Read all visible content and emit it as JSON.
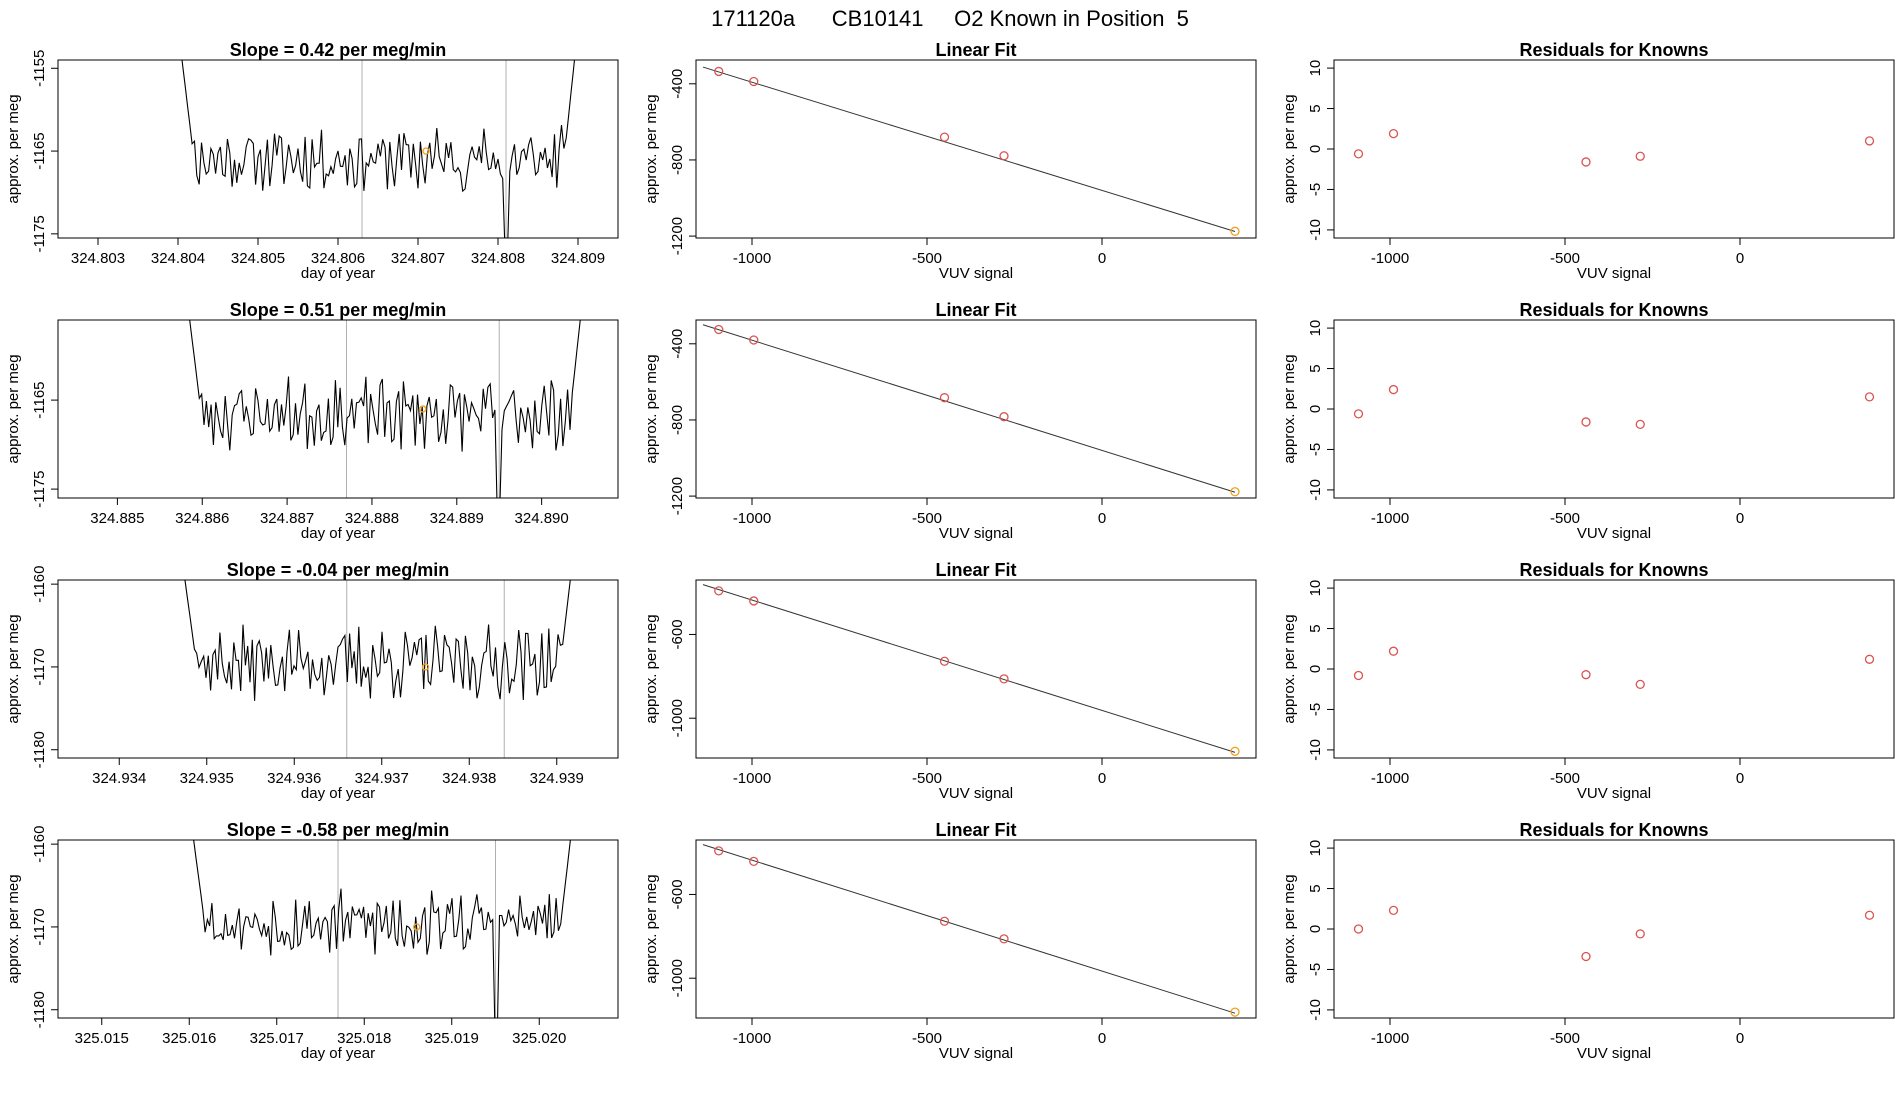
{
  "page_title": "171120a      CB10141     O2 Known in Position  5",
  "colors": {
    "trace": "#000000",
    "fit_point": "#d9534f",
    "highlight": "#f0a020",
    "vline": "#b0b0b0",
    "fit_line": "#333333"
  },
  "chart_data": [
    {
      "type": "line",
      "title": "Slope =  0.42  per meg/min",
      "xlabel": "day of year",
      "ylabel": "approx. per meg",
      "xlim": [
        324.8025,
        324.8095
      ],
      "ylim": [
        -1175.5,
        -1154
      ],
      "xticks": [
        324.803,
        324.804,
        324.805,
        324.806,
        324.807,
        324.808,
        324.809
      ],
      "xtick_labels": [
        "324.803",
        "324.804",
        "324.805",
        "324.806",
        "324.807",
        "324.808",
        "324.809"
      ],
      "yticks": [
        -1155,
        -1165,
        -1175
      ],
      "ytick_labels": [
        "-1155",
        "-1165",
        "-1175"
      ],
      "trace": {
        "start": 324.804,
        "end": 324.809,
        "base": -1166.0,
        "amp": 2.0,
        "seed": 11
      },
      "vlines": [
        324.8063,
        324.8081
      ],
      "dip_at": 324.8081,
      "highlight": [
        324.8071,
        -1165.0
      ]
    },
    {
      "type": "scatter",
      "title": "Linear Fit",
      "xlabel": "VUV signal",
      "ylabel": "approx. per meg",
      "xlim": [
        -1160,
        440
      ],
      "ylim": [
        -1210,
        -275
      ],
      "xticks": [
        -1000,
        -500,
        0
      ],
      "xtick_labels": [
        "-1000",
        "-500",
        "0"
      ],
      "yticks": [
        -400,
        -800,
        -1200
      ],
      "ytick_labels": [
        "-400",
        "-800",
        "-1200"
      ],
      "points": [
        [
          -1095,
          -335
        ],
        [
          -995,
          -388
        ],
        [
          -450,
          -680
        ],
        [
          -280,
          -778
        ],
        [
          380,
          -1175
        ]
      ],
      "highlight_index": 4,
      "fit_line": [
        [
          -1140,
          -312
        ],
        [
          380,
          -1176
        ]
      ]
    },
    {
      "type": "scatter",
      "title": "Residuals for Knowns",
      "xlabel": "VUV signal",
      "ylabel": "approx. per meg",
      "xlim": [
        -1160,
        440
      ],
      "ylim": [
        -11,
        11
      ],
      "xticks": [
        -1000,
        -500,
        0
      ],
      "xtick_labels": [
        "-1000",
        "-500",
        "0"
      ],
      "yticks": [
        10,
        5,
        0,
        -5,
        -10
      ],
      "ytick_labels": [
        "10",
        "5",
        "0",
        "-5",
        "-10"
      ],
      "points": [
        [
          -1090,
          -0.6
        ],
        [
          -990,
          1.9
        ],
        [
          -440,
          -1.6
        ],
        [
          -285,
          -0.9
        ],
        [
          370,
          1.0
        ]
      ]
    },
    {
      "type": "line",
      "title": "Slope =  0.51  per meg/min",
      "xlabel": "day of year",
      "ylabel": "approx. per meg",
      "xlim": [
        324.8843,
        324.8909
      ],
      "ylim": [
        -1176,
        -1156
      ],
      "xticks": [
        324.885,
        324.886,
        324.887,
        324.888,
        324.889,
        324.89
      ],
      "xtick_labels": [
        "324.885",
        "324.886",
        "324.887",
        "324.888",
        "324.889",
        "324.890"
      ],
      "yticks": [
        -1165,
        -1175
      ],
      "ytick_labels": [
        "-1165",
        "-1175"
      ],
      "trace": {
        "start": 324.8858,
        "end": 324.8905,
        "base": -1166.5,
        "amp": 2.0,
        "seed": 23
      },
      "vlines": [
        324.8877,
        324.8895
      ],
      "dip_at": 324.8895,
      "highlight": [
        324.8886,
        -1166.0
      ]
    },
    {
      "type": "scatter",
      "title": "Linear Fit",
      "xlabel": "VUV signal",
      "ylabel": "approx. per meg",
      "xlim": [
        -1160,
        440
      ],
      "ylim": [
        -1210,
        -275
      ],
      "xticks": [
        -1000,
        -500,
        0
      ],
      "xtick_labels": [
        "-1000",
        "-500",
        "0"
      ],
      "yticks": [
        -400,
        -800,
        -1200
      ],
      "ytick_labels": [
        "-400",
        "-800",
        "-1200"
      ],
      "points": [
        [
          -1095,
          -325
        ],
        [
          -995,
          -380
        ],
        [
          -450,
          -683
        ],
        [
          -280,
          -783
        ],
        [
          380,
          -1177
        ]
      ],
      "highlight_index": 4,
      "fit_line": [
        [
          -1140,
          -300
        ],
        [
          380,
          -1180
        ]
      ]
    },
    {
      "type": "scatter",
      "title": "Residuals for Knowns",
      "xlabel": "VUV signal",
      "ylabel": "approx. per meg",
      "xlim": [
        -1160,
        440
      ],
      "ylim": [
        -11,
        11
      ],
      "xticks": [
        -1000,
        -500,
        0
      ],
      "xtick_labels": [
        "-1000",
        "-500",
        "0"
      ],
      "yticks": [
        10,
        5,
        0,
        -5,
        -10
      ],
      "ytick_labels": [
        "10",
        "5",
        "0",
        "-5",
        "-10"
      ],
      "points": [
        [
          -1090,
          -0.6
        ],
        [
          -990,
          2.4
        ],
        [
          -440,
          -1.6
        ],
        [
          -285,
          -1.9
        ],
        [
          370,
          1.5
        ]
      ]
    },
    {
      "type": "line",
      "title": "Slope =  -0.04  per meg/min",
      "xlabel": "day of year",
      "ylabel": "approx. per meg",
      "xlim": [
        324.9333,
        324.9397
      ],
      "ylim": [
        -1181,
        -1159.5
      ],
      "xticks": [
        324.934,
        324.935,
        324.936,
        324.937,
        324.938,
        324.939
      ],
      "xtick_labels": [
        "324.934",
        "324.935",
        "324.936",
        "324.937",
        "324.938",
        "324.939"
      ],
      "yticks": [
        -1160,
        -1170,
        -1180
      ],
      "ytick_labels": [
        "-1160",
        "-1170",
        "-1180"
      ],
      "trace": {
        "start": 324.9347,
        "end": 324.9392,
        "base": -1169.5,
        "amp": 2.2,
        "seed": 37
      },
      "vlines": [
        324.9366,
        324.9384
      ],
      "dip_at": null,
      "highlight": [
        324.9375,
        -1170.0
      ]
    },
    {
      "type": "scatter",
      "title": "Linear Fit",
      "xlabel": "VUV signal",
      "ylabel": "approx. per meg",
      "xlim": [
        -1160,
        440
      ],
      "ylim": [
        -1190,
        -340
      ],
      "xticks": [
        -1000,
        -500,
        0
      ],
      "xtick_labels": [
        "-1000",
        "-500",
        "0"
      ],
      "yticks": [
        -600,
        -1000
      ],
      "ytick_labels": [
        "-600",
        "-1000"
      ],
      "points": [
        [
          -1095,
          -392
        ],
        [
          -995,
          -440
        ],
        [
          -450,
          -728
        ],
        [
          -280,
          -812
        ],
        [
          380,
          -1158
        ]
      ],
      "highlight_index": 4,
      "fit_line": [
        [
          -1140,
          -362
        ],
        [
          380,
          -1163
        ]
      ]
    },
    {
      "type": "scatter",
      "title": "Residuals for Knowns",
      "xlabel": "VUV signal",
      "ylabel": "approx. per meg",
      "xlim": [
        -1160,
        440
      ],
      "ylim": [
        -11,
        11
      ],
      "xticks": [
        -1000,
        -500,
        0
      ],
      "xtick_labels": [
        "-1000",
        "-500",
        "0"
      ],
      "yticks": [
        10,
        5,
        0,
        -5,
        -10
      ],
      "ytick_labels": [
        "10",
        "5",
        "0",
        "-5",
        "-10"
      ],
      "points": [
        [
          -1090,
          -0.8
        ],
        [
          -990,
          2.2
        ],
        [
          -440,
          -0.7
        ],
        [
          -285,
          -1.9
        ],
        [
          370,
          1.2
        ]
      ]
    },
    {
      "type": "line",
      "title": "Slope =  -0.58  per meg/min",
      "xlabel": "day of year",
      "ylabel": "approx. per meg",
      "xlim": [
        325.0145,
        325.0209
      ],
      "ylim": [
        -1181,
        -1159.5
      ],
      "xticks": [
        325.015,
        325.016,
        325.017,
        325.018,
        325.019,
        325.02
      ],
      "xtick_labels": [
        "325.015",
        "325.016",
        "325.017",
        "325.018",
        "325.019",
        "325.020"
      ],
      "yticks": [
        -1160,
        -1170,
        -1180
      ],
      "ytick_labels": [
        "-1160",
        "-1170",
        "-1180"
      ],
      "trace": {
        "start": 325.016,
        "end": 325.0204,
        "base": -1169.5,
        "amp": 2.0,
        "seed": 53
      },
      "vlines": [
        325.0177,
        325.0195
      ],
      "dip_at": 325.0195,
      "highlight": [
        325.0186,
        -1170.0
      ]
    },
    {
      "type": "scatter",
      "title": "Linear Fit",
      "xlabel": "VUV signal",
      "ylabel": "approx. per meg",
      "xlim": [
        -1160,
        440
      ],
      "ylim": [
        -1190,
        -340
      ],
      "xticks": [
        -1000,
        -500,
        0
      ],
      "xtick_labels": [
        "-1000",
        "-500",
        "0"
      ],
      "yticks": [
        -600,
        -1000
      ],
      "ytick_labels": [
        "-600",
        "-1000"
      ],
      "points": [
        [
          -1095,
          -392
        ],
        [
          -995,
          -442
        ],
        [
          -450,
          -728
        ],
        [
          -280,
          -812
        ],
        [
          380,
          -1162
        ]
      ],
      "highlight_index": 4,
      "fit_line": [
        [
          -1140,
          -362
        ],
        [
          380,
          -1167
        ]
      ]
    },
    {
      "type": "scatter",
      "title": "Residuals for Knowns",
      "xlabel": "VUV signal",
      "ylabel": "approx. per meg",
      "xlim": [
        -1160,
        440
      ],
      "ylim": [
        -11,
        11
      ],
      "xticks": [
        -1000,
        -500,
        0
      ],
      "xtick_labels": [
        "-1000",
        "-500",
        "0"
      ],
      "yticks": [
        10,
        5,
        0,
        -5,
        -10
      ],
      "ytick_labels": [
        "10",
        "5",
        "0",
        "-5",
        "-10"
      ],
      "points": [
        [
          -1090,
          0.0
        ],
        [
          -990,
          2.3
        ],
        [
          -440,
          -3.4
        ],
        [
          -285,
          -0.6
        ],
        [
          370,
          1.7
        ]
      ]
    }
  ]
}
